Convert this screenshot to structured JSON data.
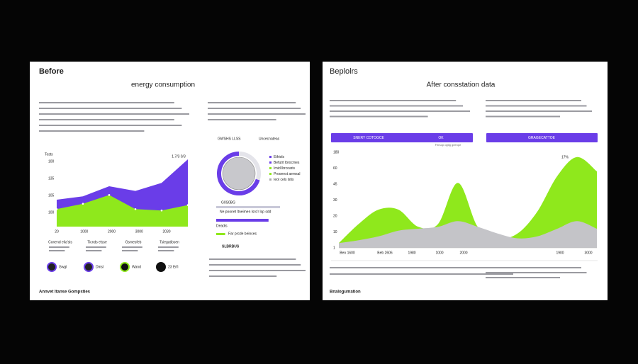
{
  "left": {
    "heading": "Before",
    "title": "energy consumption",
    "footer": "Annvet Itanse Gompsties",
    "chart": {
      "y_label": "Tosts",
      "corner_label": "1.7/3 0/3",
      "y_labels": [
        "100",
        "135",
        "105",
        "100"
      ],
      "x_labels": [
        "20",
        "1000",
        "2000",
        "3000",
        "2030"
      ],
      "ylim": [
        0,
        100
      ],
      "series": [
        {
          "color": "#6a3de8",
          "values": [
            40,
            45,
            60,
            53,
            65,
            100
          ]
        },
        {
          "color": "#8fe81c",
          "values": [
            26,
            34,
            47,
            26,
            24,
            32
          ]
        }
      ]
    },
    "stats": [
      "Conend elia'sls",
      "Ticnds elsse",
      "Gsmesfeb",
      "Tsiegatibsen"
    ],
    "badges": [
      "Gwgl",
      "Dinsl",
      "Wand",
      "23 Erfi"
    ],
    "donut": {
      "labels": [
        "GWSHS LLSS",
        "Uncecnateas"
      ],
      "value": 70,
      "color": "#6a3de8",
      "legend": [
        "Ethiols",
        "Befutrt lbrocmes",
        "Irnid lbrcoaris",
        "Prooeest aemsal",
        "Ieol cels lstis"
      ]
    },
    "bars": {
      "title": "G0S0BG",
      "items": [
        {
          "label": "Ne poonet ltneimen lsrs'r lsp sdd",
          "value": 100,
          "color": "#c8c8d8"
        },
        {
          "label": "Deadis",
          "value": 82,
          "color": "#6a3de8"
        },
        {
          "label": "Far prcde beinces",
          "value": 14,
          "color": "#8fe81c"
        }
      ]
    },
    "section": "SLBRBUS"
  },
  "right": {
    "heading": "Beplolrs",
    "title": "After consstation data",
    "footer": "Bnalogumation",
    "buttons": [
      "SNERY COTOGCE",
      "OK",
      "GRAGECATTOE"
    ],
    "caption": "Fersop ogtig geenpe",
    "chart": {
      "corner_label": "17%",
      "y_labels": [
        "180",
        "60",
        "45",
        "30",
        "20",
        "10",
        "1"
      ],
      "x_labels": [
        "Beo 1600",
        "Beb 2606",
        "1980",
        "1000",
        "2000",
        "1900",
        "3000"
      ],
      "ylim": [
        0,
        100
      ],
      "series": [
        {
          "color": "#8fe81c",
          "values": [
            5,
            25,
            40,
            40,
            22,
            25,
            68,
            22,
            10,
            15,
            38,
            75,
            95,
            80
          ]
        },
        {
          "color": "#c4c4c8",
          "values": [
            5,
            8,
            12,
            18,
            20,
            22,
            28,
            22,
            15,
            10,
            12,
            20,
            28,
            20
          ]
        }
      ]
    }
  }
}
